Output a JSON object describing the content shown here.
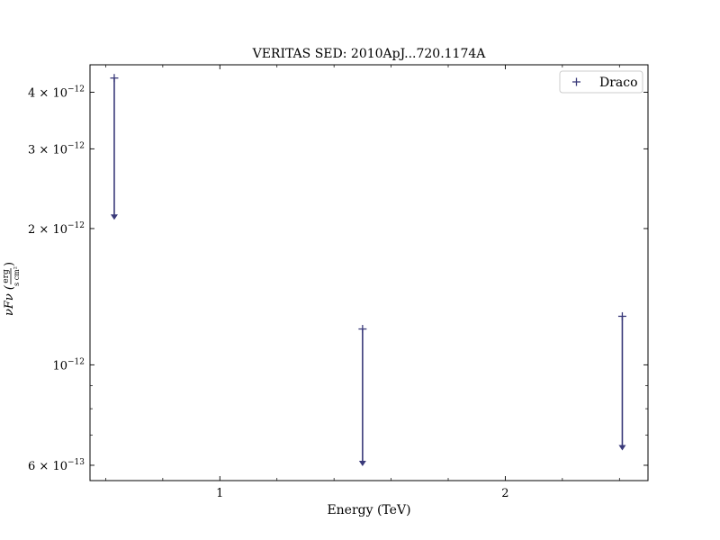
{
  "chart_data": {
    "type": "scatter",
    "title": "VERITAS SED: 2010ApJ...720.1174A",
    "xlabel": "Energy (TeV)",
    "ylabel": {
      "prefix": "νFν (",
      "num": "erg",
      "den": "s cm²",
      "suffix": ")"
    },
    "xscale": "linear",
    "yscale": "log",
    "xlim": [
      0.545,
      2.5
    ],
    "ylim": [
      5.55e-13,
      4.6e-12
    ],
    "xticks": [
      {
        "value": 1,
        "label": "1"
      },
      {
        "value": 2,
        "label": "2"
      }
    ],
    "yticks": [
      {
        "value": 6e-13,
        "mant": "6 × 10",
        "exp": "−13"
      },
      {
        "value": 1e-12,
        "mant": "10",
        "exp": "−12"
      },
      {
        "value": 2e-12,
        "mant": "2 × 10",
        "exp": "−12"
      },
      {
        "value": 3e-12,
        "mant": "3 × 10",
        "exp": "−12"
      },
      {
        "value": 4e-12,
        "mant": "4 × 10",
        "exp": "−12"
      }
    ],
    "legend": "top-right",
    "grid": false,
    "series": [
      {
        "name": "Draco",
        "color": "#3a3a7a",
        "marker": "+",
        "upper_limits": true,
        "points": [
          {
            "x": 0.63,
            "y": 4.3e-12,
            "arrow_to": 2.1e-12
          },
          {
            "x": 1.5,
            "y": 1.2e-12,
            "arrow_to": 6e-13
          },
          {
            "x": 2.41,
            "y": 1.28e-12,
            "arrow_to": 6.5e-13
          }
        ]
      }
    ]
  }
}
